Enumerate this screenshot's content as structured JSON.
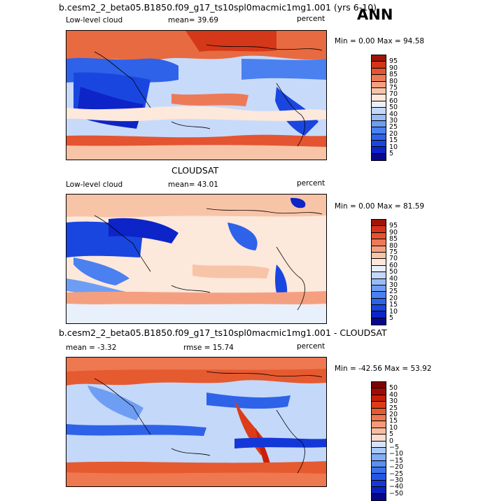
{
  "season_label": "ANN",
  "panels": [
    {
      "title": "b.cesm2_2_beta05.B1850.f09_g17_ts10spl0macmic1mg1.001 (yrs 6-10)",
      "left_label": "Low-level cloud",
      "mean_label": "mean=  39.69",
      "units": "percent",
      "minmax": "Min =    0.00 Max =  94.58"
    },
    {
      "title": "CLOUDSAT",
      "left_label": "Low-level cloud",
      "mean_label": "mean=  43.01",
      "units": "percent",
      "minmax": "Min =    0.00 Max =  81.59"
    },
    {
      "title": "b.cesm2_2_beta05.B1850.f09_g17_ts10spl0macmic1mg1.001 - CLOUDSAT",
      "left_label": "mean =  -3.32",
      "mean_label": "rmse =  15.74",
      "units": "percent",
      "minmax": "Min = -42.56  Max =  53.92"
    }
  ],
  "chart_data": [
    {
      "type": "heatmap",
      "title": "b.cesm2_2_beta05.B1850.f09_g17_ts10spl0macmic1mg1.001 (yrs 6-10)",
      "variable": "Low-level cloud",
      "units": "percent",
      "mean": 39.69,
      "min": 0.0,
      "max": 94.58,
      "colorbar_levels": [
        5,
        10,
        15,
        20,
        25,
        30,
        40,
        50,
        60,
        70,
        75,
        80,
        85,
        90,
        95
      ],
      "colorbar_labels": [
        "95",
        "90",
        "85",
        "80",
        "75",
        "70",
        "60",
        "50",
        "40",
        "30",
        "25",
        "20",
        "15",
        "10",
        "5"
      ],
      "colors": [
        "#08088c",
        "#0d24c8",
        "#1a46e0",
        "#2e62e8",
        "#4a80f0",
        "#6e9ef4",
        "#98bcf8",
        "#c4d8fa",
        "#e8f0fc",
        "#fde8dc",
        "#f8c4a8",
        "#f4a080",
        "#ec7a56",
        "#e45430",
        "#d43418",
        "#a01408"
      ]
    },
    {
      "type": "heatmap",
      "title": "CLOUDSAT",
      "variable": "Low-level cloud",
      "units": "percent",
      "mean": 43.01,
      "min": 0.0,
      "max": 81.59,
      "colorbar_levels": [
        5,
        10,
        15,
        20,
        25,
        30,
        40,
        50,
        60,
        70,
        75,
        80,
        85,
        90,
        95
      ],
      "colorbar_labels": [
        "95",
        "90",
        "85",
        "80",
        "75",
        "70",
        "60",
        "50",
        "40",
        "30",
        "25",
        "20",
        "15",
        "10",
        "5"
      ],
      "colors": [
        "#08088c",
        "#0d24c8",
        "#1a46e0",
        "#2e62e8",
        "#4a80f0",
        "#6e9ef4",
        "#98bcf8",
        "#c4d8fa",
        "#e8f0fc",
        "#fde8dc",
        "#f8c4a8",
        "#f4a080",
        "#ec7a56",
        "#e45430",
        "#d43418",
        "#a01408"
      ]
    },
    {
      "type": "heatmap",
      "title": "b.cesm2_2_beta05.B1850.f09_g17_ts10spl0macmic1mg1.001 - CLOUDSAT",
      "units": "percent",
      "mean": -3.32,
      "rmse": 15.74,
      "min": -42.56,
      "max": 53.92,
      "colorbar_levels": [
        -50,
        -40,
        -30,
        -25,
        -20,
        -15,
        -10,
        -5,
        0,
        5,
        10,
        15,
        20,
        25,
        30,
        40,
        50
      ],
      "colorbar_labels": [
        "50",
        "40",
        "30",
        "25",
        "20",
        "15",
        "10",
        "5",
        "0",
        "−5",
        "−10",
        "−15",
        "−20",
        "−25",
        "−30",
        "−40",
        "−50"
      ],
      "colors": [
        "#06068a",
        "#0a20c0",
        "#1438d8",
        "#2456e4",
        "#3a72ec",
        "#5a90f2",
        "#82acf6",
        "#aac8f8",
        "#d6e4fa",
        "#fcdcd0",
        "#f8bca0",
        "#f49a78",
        "#ee7850",
        "#e65a30",
        "#dc3c18",
        "#c82008",
        "#a00c04",
        "#7c0400"
      ]
    }
  ]
}
